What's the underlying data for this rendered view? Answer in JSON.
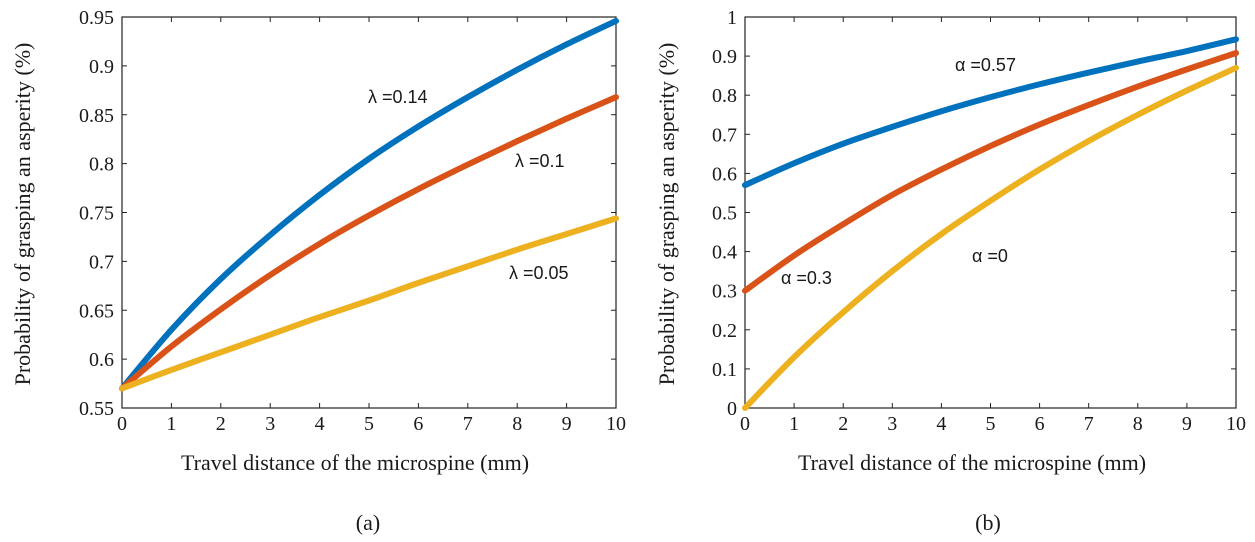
{
  "chart_data": [
    {
      "type": "line",
      "panel_label": "(a)",
      "xlabel": "Travel distance of the microspine (mm)",
      "ylabel": "Probability of grasping an asperity (%)",
      "xlim": [
        0,
        10
      ],
      "ylim": [
        0.55,
        0.95
      ],
      "xticks": [
        0,
        1,
        2,
        3,
        4,
        5,
        6,
        7,
        8,
        9,
        10
      ],
      "xtick_labels": [
        "0",
        "1",
        "2",
        "3",
        "4",
        "5",
        "6",
        "7",
        "8",
        "9",
        "10"
      ],
      "yticks": [
        0.55,
        0.6,
        0.65,
        0.7,
        0.75,
        0.8,
        0.85,
        0.9,
        0.95
      ],
      "ytick_labels": [
        "0.55",
        "0.6",
        "0.65",
        "0.7",
        "0.75",
        "0.8",
        "0.85",
        "0.9",
        "0.95"
      ],
      "x": [
        0,
        1,
        2,
        3,
        4,
        5,
        6,
        7,
        8,
        9,
        10
      ],
      "series": [
        {
          "name": "λ =0.14",
          "color": "#0072BD",
          "values": [
            0.57,
            0.63,
            0.682,
            0.727,
            0.768,
            0.805,
            0.838,
            0.868,
            0.896,
            0.922,
            0.946
          ]
        },
        {
          "name": "λ =0.1",
          "color": "#D95319",
          "values": [
            0.57,
            0.613,
            0.651,
            0.686,
            0.718,
            0.747,
            0.774,
            0.799,
            0.823,
            0.846,
            0.868
          ]
        },
        {
          "name": "λ =0.05",
          "color": "#EDB120",
          "values": [
            0.57,
            0.589,
            0.607,
            0.625,
            0.643,
            0.66,
            0.678,
            0.695,
            0.712,
            0.728,
            0.744
          ]
        }
      ],
      "annotations": [
        {
          "text": "λ =0.14",
          "series": "λ =0.14"
        },
        {
          "text": "λ =0.1",
          "series": "λ =0.1"
        },
        {
          "text": "λ =0.05",
          "series": "λ =0.05"
        }
      ]
    },
    {
      "type": "line",
      "panel_label": "(b)",
      "xlabel": "Travel distance of the microspine (mm)",
      "ylabel": "Probability of grasping an asperity (%)",
      "xlim": [
        0,
        10
      ],
      "ylim": [
        0,
        1
      ],
      "xticks": [
        0,
        1,
        2,
        3,
        4,
        5,
        6,
        7,
        8,
        9,
        10
      ],
      "xtick_labels": [
        "0",
        "1",
        "2",
        "3",
        "4",
        "5",
        "6",
        "7",
        "8",
        "9",
        "10"
      ],
      "yticks": [
        0,
        0.1,
        0.2,
        0.3,
        0.4,
        0.5,
        0.6,
        0.7,
        0.8,
        0.9,
        1
      ],
      "ytick_labels": [
        "0",
        "0.1",
        "0.2",
        "0.3",
        "0.4",
        "0.5",
        "0.6",
        "0.7",
        "0.8",
        "0.9",
        "1"
      ],
      "x": [
        0,
        1,
        2,
        3,
        4,
        5,
        6,
        7,
        8,
        9,
        10
      ],
      "series": [
        {
          "name": "α =0.57",
          "color": "#0072BD",
          "values": [
            0.57,
            0.626,
            0.676,
            0.719,
            0.759,
            0.795,
            0.828,
            0.858,
            0.886,
            0.913,
            0.943
          ]
        },
        {
          "name": "α =0.3",
          "color": "#D95319",
          "values": [
            0.3,
            0.39,
            0.47,
            0.545,
            0.61,
            0.67,
            0.725,
            0.775,
            0.822,
            0.866,
            0.908
          ]
        },
        {
          "name": "α =0",
          "color": "#EDB120",
          "values": [
            0.0,
            0.13,
            0.245,
            0.35,
            0.445,
            0.53,
            0.61,
            0.683,
            0.75,
            0.812,
            0.87
          ]
        }
      ],
      "annotations": [
        {
          "text": "α =0.57",
          "series": "α =0.57"
        },
        {
          "text": "α =0.3",
          "series": "α =0.3"
        },
        {
          "text": "α =0",
          "series": "α =0"
        }
      ]
    }
  ]
}
